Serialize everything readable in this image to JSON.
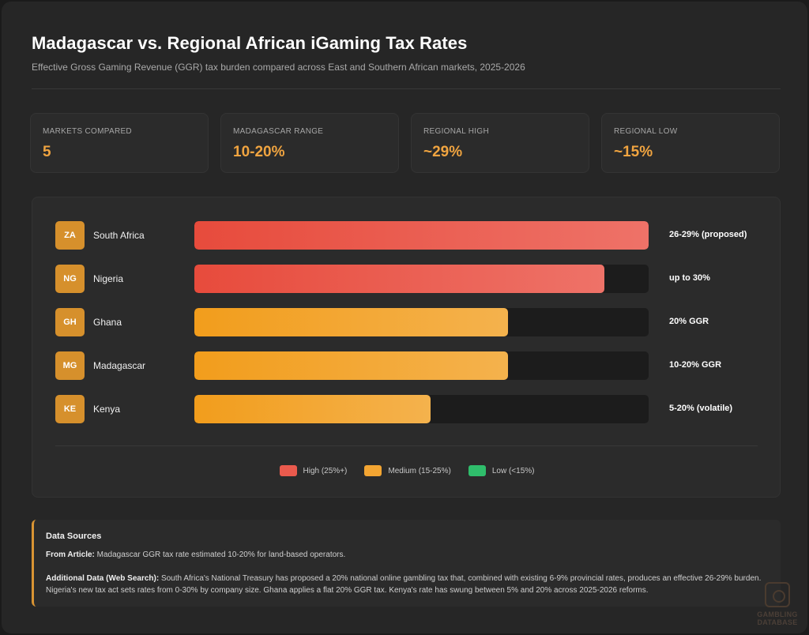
{
  "header": {
    "title": "Madagascar vs. Regional African iGaming Tax Rates",
    "subtitle": "Effective Gross Gaming Revenue (GGR) tax burden compared across East and Southern African markets, 2025-2026"
  },
  "stats": [
    {
      "label": "MARKETS COMPARED",
      "value": "5"
    },
    {
      "label": "MADAGASCAR RANGE",
      "value": "10-20%"
    },
    {
      "label": "REGIONAL HIGH",
      "value": "~29%"
    },
    {
      "label": "REGIONAL LOW",
      "value": "~15%"
    }
  ],
  "chart_data": {
    "type": "bar",
    "orientation": "horizontal",
    "categories": [
      "South Africa",
      "Nigeria",
      "Ghana",
      "Madagascar",
      "Kenya"
    ],
    "codes": [
      "ZA",
      "NG",
      "GH",
      "MG",
      "KE"
    ],
    "values": [
      29,
      26.2,
      20,
      20,
      15.1
    ],
    "rate_labels": [
      "26-29% (proposed)",
      "up to 30%",
      "20% GGR",
      "10-20% GGR",
      "5-20% (volatile)"
    ],
    "tiers": [
      "high",
      "high",
      "medium",
      "medium",
      "medium"
    ],
    "xlim": [
      0,
      29
    ],
    "legend": [
      {
        "key": "high",
        "label": "High (25%+)",
        "color": "#ea5a4d"
      },
      {
        "key": "medium",
        "label": "Medium (15-25%)",
        "color": "#f3a532"
      },
      {
        "key": "low",
        "label": "Low (<15%)",
        "color": "#2fbd6b"
      }
    ],
    "legend_position": "bottom-center",
    "grid": false
  },
  "sources": {
    "heading": "Data Sources",
    "article_label": "From Article:",
    "article_text": "Madagascar GGR tax rate estimated 10-20% for land-based operators.",
    "additional_label": "Additional Data (Web Search):",
    "additional_text": "South Africa's National Treasury has proposed a 20% national online gambling tax that, combined with existing 6-9% provincial rates, produces an effective 26-29% burden. Nigeria's new tax act sets rates from 0-30% by company size. Ghana applies a flat 20% GGR tax. Kenya's rate has swung between 5% and 20% across 2025-2026 reforms."
  },
  "watermark": {
    "line1": "GAMBLING",
    "line2": "DATABASE"
  }
}
